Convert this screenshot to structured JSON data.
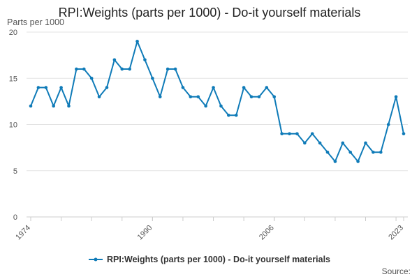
{
  "chart_data": {
    "type": "line",
    "title": "RPI:Weights (parts per 1000) - Do-it yourself materials",
    "ylabel": "Parts per 1000",
    "xlabel": "",
    "ylim": [
      0,
      20
    ],
    "y_ticks": [
      0,
      5,
      10,
      15,
      20
    ],
    "x_ticks": [
      1974,
      1990,
      2006,
      2023
    ],
    "grid": true,
    "legend_position": "bottom",
    "source": "Source:",
    "x": [
      1974,
      1975,
      1976,
      1977,
      1978,
      1979,
      1980,
      1981,
      1982,
      1983,
      1984,
      1985,
      1986,
      1987,
      1988,
      1989,
      1990,
      1991,
      1992,
      1993,
      1994,
      1995,
      1996,
      1997,
      1998,
      1999,
      2000,
      2001,
      2002,
      2003,
      2004,
      2005,
      2006,
      2007,
      2008,
      2009,
      2010,
      2011,
      2012,
      2013,
      2014,
      2015,
      2016,
      2017,
      2018,
      2019,
      2020,
      2021,
      2022,
      2023
    ],
    "series": [
      {
        "name": "RPI:Weights (parts per 1000) - Do-it yourself materials",
        "color": "#0f7bb8",
        "values": [
          12,
          14,
          14,
          12,
          14,
          12,
          16,
          16,
          15,
          13,
          14,
          17,
          16,
          16,
          19,
          17,
          15,
          13,
          16,
          16,
          14,
          13,
          13,
          12,
          14,
          12,
          11,
          11,
          14,
          13,
          13,
          14,
          13,
          9,
          9,
          9,
          8,
          9,
          8,
          7,
          6,
          8,
          7,
          6,
          8,
          7,
          7,
          10,
          13,
          9
        ]
      }
    ]
  }
}
